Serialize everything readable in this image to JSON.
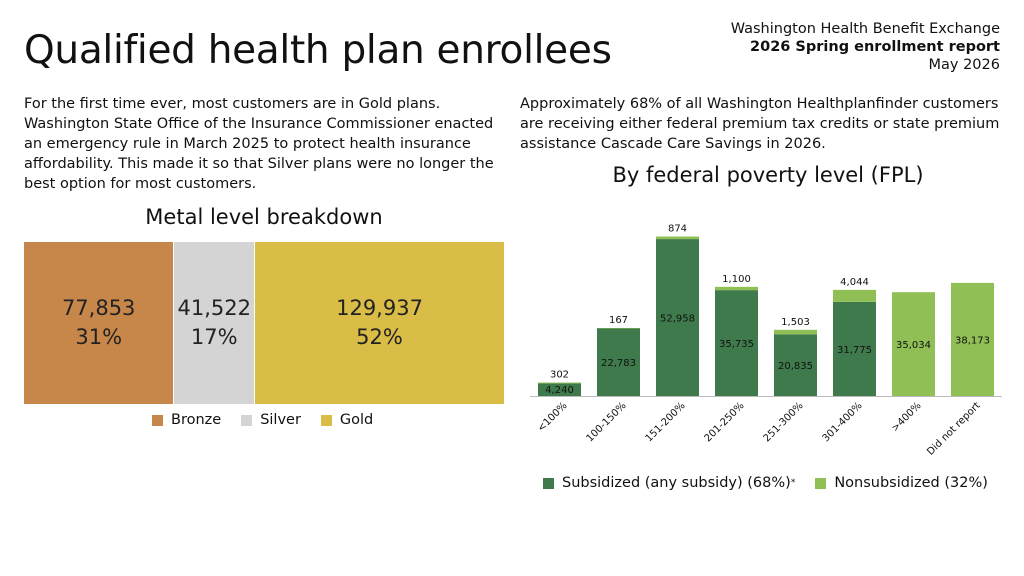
{
  "header": {
    "title": "Qualified health plan enrollees",
    "org": "Washington Health Benefit Exchange",
    "report": "2026 Spring enrollment report",
    "date": "May 2026"
  },
  "text": {
    "left": "For the first time ever, most customers are in Gold plans. Washington State Office of the Insurance Commissioner enacted an emergency rule in March 2025 to protect health insurance affordability. This made it so that Silver plans were no longer the best option for most customers.",
    "right": "Approximately 68% of all Washington Healthplanfinder customers are receiving either federal premium tax credits or state premium assistance Cascade Care Savings in 2026."
  },
  "colors": {
    "bronze": "#c8874a",
    "silver": "#d4d4d4",
    "gold": "#d9bd47",
    "subsidized": "#3f7a4c",
    "nonsubsidized": "#8fbf55"
  },
  "chart_data": [
    {
      "type": "bar",
      "title": "Metal level breakdown",
      "stacked": "horizontal-100%",
      "categories": [
        "Bronze",
        "Silver",
        "Gold"
      ],
      "values": [
        77853,
        41522,
        129937
      ],
      "value_labels": [
        "77,853",
        "41,522",
        "129,937"
      ],
      "percent_labels": [
        "31%",
        "17%",
        "52%"
      ],
      "legend": [
        "Bronze",
        "Silver",
        "Gold"
      ],
      "legend_position": "bottom"
    },
    {
      "type": "bar",
      "title": "By federal poverty level (FPL)",
      "stacked": true,
      "categories": [
        "<100%",
        "100-150%",
        "151-200%",
        "201-250%",
        "251-300%",
        "301-400%",
        ">400%",
        "Did not report"
      ],
      "series": [
        {
          "name": "Subsidized (any subsidy) (68%)",
          "values": [
            4240,
            22783,
            52958,
            35735,
            20835,
            31775,
            0,
            0
          ],
          "labels": [
            "4,240",
            "22,783",
            "52,958",
            "35,735",
            "20,835",
            "31,775",
            "",
            ""
          ]
        },
        {
          "name": "Nonsubsidized (32%)",
          "values": [
            302,
            167,
            874,
            1100,
            1503,
            4044,
            35034,
            38173
          ],
          "labels": [
            "302",
            "167",
            "874",
            "1,100",
            "1,503",
            "4,044",
            "35,034",
            "38,173"
          ]
        }
      ],
      "legend_note": "*",
      "legend_position": "bottom",
      "ylim": [
        0,
        54000
      ],
      "grid": false
    }
  ]
}
